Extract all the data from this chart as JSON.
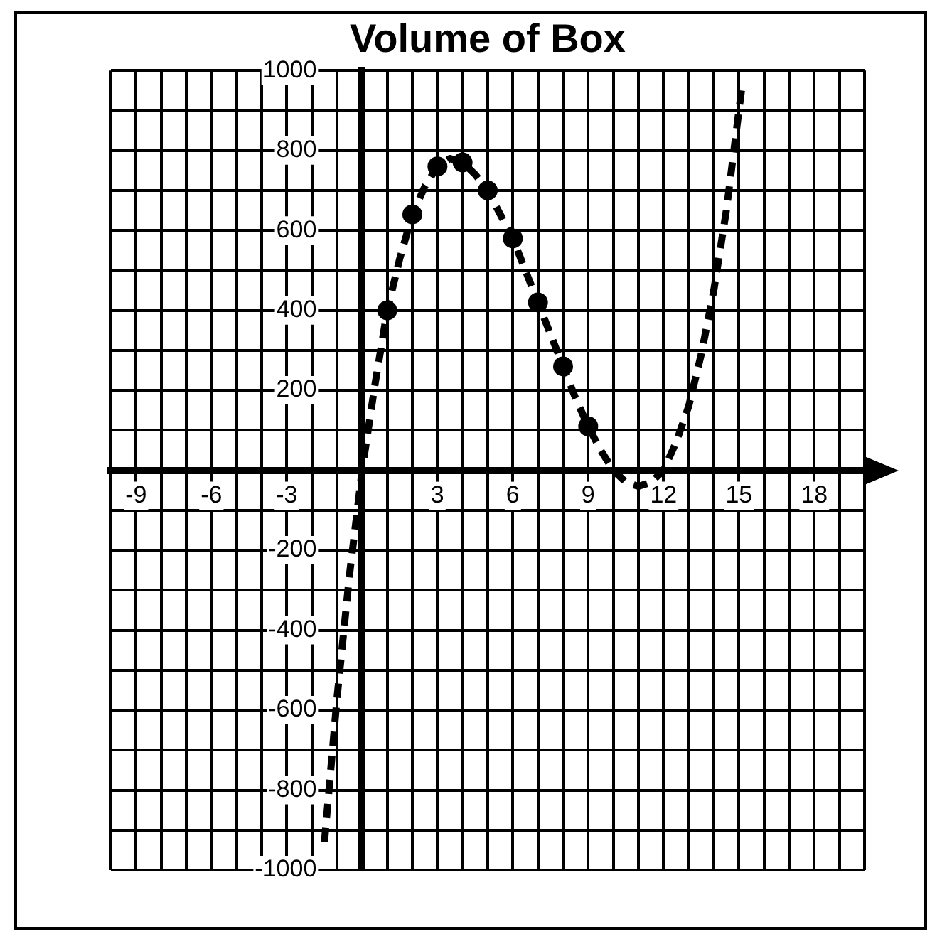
{
  "chart_data": {
    "type": "line",
    "title": "Volume of Box",
    "grid": true,
    "legend": false,
    "xlim": [
      -10,
      20
    ],
    "ylim": [
      -1000,
      1000
    ],
    "xticks": [
      {
        "value": -10,
        "label": null
      },
      {
        "value": -9,
        "label": "-9"
      },
      {
        "value": -8,
        "label": null
      },
      {
        "value": -7,
        "label": null
      },
      {
        "value": -6,
        "label": "-6"
      },
      {
        "value": -5,
        "label": null
      },
      {
        "value": -4,
        "label": null
      },
      {
        "value": -3,
        "label": "-3"
      },
      {
        "value": -2,
        "label": null
      },
      {
        "value": -1,
        "label": null
      },
      {
        "value": 0,
        "label": null
      },
      {
        "value": 1,
        "label": null
      },
      {
        "value": 2,
        "label": null
      },
      {
        "value": 3,
        "label": "3"
      },
      {
        "value": 4,
        "label": null
      },
      {
        "value": 5,
        "label": null
      },
      {
        "value": 6,
        "label": "6"
      },
      {
        "value": 7,
        "label": null
      },
      {
        "value": 8,
        "label": null
      },
      {
        "value": 9,
        "label": "9"
      },
      {
        "value": 10,
        "label": null
      },
      {
        "value": 11,
        "label": null
      },
      {
        "value": 12,
        "label": "12"
      },
      {
        "value": 13,
        "label": null
      },
      {
        "value": 14,
        "label": null
      },
      {
        "value": 15,
        "label": "15"
      },
      {
        "value": 16,
        "label": null
      },
      {
        "value": 17,
        "label": null
      },
      {
        "value": 18,
        "label": "18"
      },
      {
        "value": 19,
        "label": null
      },
      {
        "value": 20,
        "label": null
      }
    ],
    "yticks": [
      {
        "value": -1000,
        "label": "-1000"
      },
      {
        "value": -900,
        "label": null
      },
      {
        "value": -800,
        "label": "-800"
      },
      {
        "value": -700,
        "label": null
      },
      {
        "value": -600,
        "label": "-600"
      },
      {
        "value": -500,
        "label": null
      },
      {
        "value": -400,
        "label": "-400"
      },
      {
        "value": -300,
        "label": null
      },
      {
        "value": -200,
        "label": "-200"
      },
      {
        "value": -100,
        "label": null
      },
      {
        "value": 0,
        "label": null
      },
      {
        "value": 100,
        "label": null
      },
      {
        "value": 200,
        "label": "200"
      },
      {
        "value": 300,
        "label": null
      },
      {
        "value": 400,
        "label": "400"
      },
      {
        "value": 500,
        "label": null
      },
      {
        "value": 600,
        "label": "600"
      },
      {
        "value": 700,
        "label": null
      },
      {
        "value": 800,
        "label": "800"
      },
      {
        "value": 900,
        "label": null
      },
      {
        "value": 1000,
        "label": "1000"
      }
    ],
    "series": [
      {
        "type": "line",
        "color": "#000000",
        "marker": "none",
        "line_style": "dashed",
        "x": [
          -1.5,
          -1,
          -0.5,
          0,
          0.5,
          1,
          1.5,
          2,
          2.5,
          3,
          3.5,
          4,
          4.5,
          5,
          5.5,
          6,
          6.5,
          7,
          7.5,
          8,
          8.5,
          9,
          9.5,
          10,
          10.5,
          11,
          11.5,
          12,
          12.5,
          13,
          13.5,
          14,
          14.5,
          15,
          15.1
        ],
        "values": [
          -930,
          -570,
          -260,
          0,
          210,
          400,
          530,
          640,
          710,
          760,
          780,
          770,
          740,
          700,
          640,
          580,
          500,
          420,
          340,
          260,
          180,
          110,
          50,
          0,
          -30,
          -40,
          -30,
          0,
          70,
          160,
          290,
          450,
          650,
          900,
          950
        ]
      },
      {
        "type": "scatter",
        "color": "#000000",
        "marker": "circle",
        "x": [
          1,
          2,
          3,
          4,
          5,
          6,
          7,
          8,
          9
        ],
        "values": [
          400,
          640,
          760,
          770,
          700,
          580,
          420,
          260,
          110
        ]
      }
    ]
  }
}
